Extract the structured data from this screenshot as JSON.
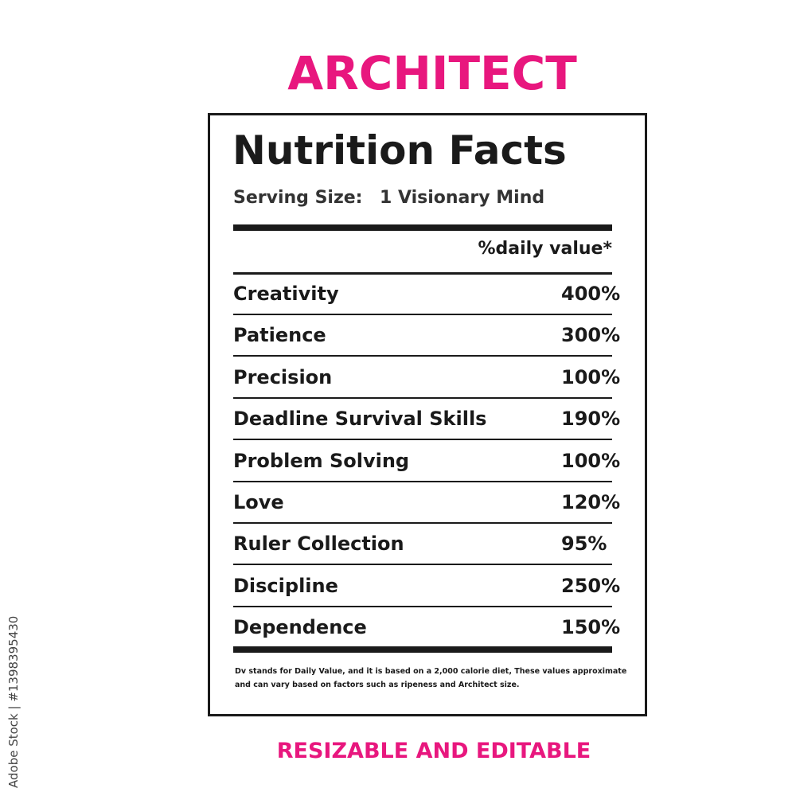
{
  "title": "ARCHITECT",
  "label": {
    "heading": "Nutrition Facts",
    "serving_label": "Serving Size:",
    "serving_value": "1 Visionary Mind",
    "daily_value_header": "%daily value*",
    "rows": [
      [
        "Creativity",
        "400%"
      ],
      [
        "Patience",
        "300%"
      ],
      [
        "Precision",
        "100%"
      ],
      [
        "Deadline Survival Skills",
        "190%"
      ],
      [
        "Problem Solving",
        "100%"
      ],
      [
        "Love",
        "120%"
      ],
      [
        "Ruler Collection",
        "95%"
      ],
      [
        "Discipline",
        "250%"
      ],
      [
        "Dependence",
        "150%"
      ]
    ],
    "footnote": [
      "Dv stands for Daily Value, and it is based on a 2,000 calorie diet, These values approximate",
      "and can vary based on factors such as ripeness and Architect size."
    ]
  },
  "footer": "RESIZABLE AND EDITABLE",
  "watermark": "Adobe Stock | #1398395430"
}
